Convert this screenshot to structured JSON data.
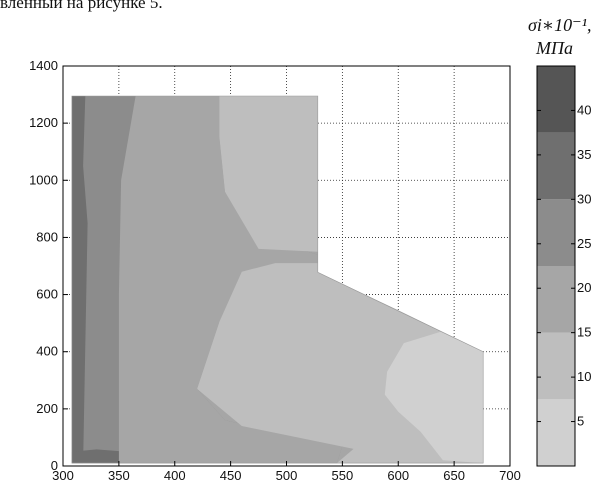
{
  "page": {
    "top_text": "вленный на рисунке 5.",
    "colorbar_title_line1": "σi∗10⁻¹,",
    "colorbar_title_line2": "МПа"
  },
  "chart_data": {
    "type": "heatmap",
    "title": "",
    "xlabel": "",
    "ylabel": "",
    "x_ticks": [
      "300",
      "350",
      "400",
      "450",
      "500",
      "550",
      "600",
      "650",
      "700"
    ],
    "y_ticks": [
      "0",
      "200",
      "400",
      "600",
      "800",
      "1000",
      "1200",
      "1400"
    ],
    "xlim": [
      300,
      700
    ],
    "ylim": [
      0,
      1400
    ],
    "grid": true,
    "domain_outline": [
      [
        308,
        1295
      ],
      [
        528,
        1295
      ],
      [
        528,
        678
      ],
      [
        676,
        400
      ],
      [
        676,
        10
      ],
      [
        308,
        10
      ]
    ],
    "colorbar": {
      "range": [
        0,
        45
      ],
      "levels": [
        {
          "from": 0,
          "to": 7.5,
          "color": "#d0d0d0"
        },
        {
          "from": 7.5,
          "to": 15,
          "color": "#bebebe"
        },
        {
          "from": 15,
          "to": 22.5,
          "color": "#a6a6a6"
        },
        {
          "from": 22.5,
          "to": 30,
          "color": "#8c8c8c"
        },
        {
          "from": 30,
          "to": 37.5,
          "color": "#6f6f6f"
        },
        {
          "from": 37.5,
          "to": 45,
          "color": "#555555"
        }
      ],
      "tick_labels": [
        "5",
        "10",
        "15",
        "20",
        "25",
        "30",
        "35",
        "40"
      ],
      "tick_values": [
        5,
        10,
        15,
        20,
        25,
        30,
        35,
        40
      ]
    },
    "regions": [
      {
        "level": 22.5,
        "color": "#8c8c8c",
        "boundary": [
          [
            308,
            10
          ],
          [
            308,
            1295
          ],
          [
            445,
            1295
          ],
          [
            440,
            1150
          ],
          [
            445,
            960
          ],
          [
            475,
            880
          ],
          [
            510,
            760
          ],
          [
            528,
            740
          ],
          [
            528,
            678
          ],
          [
            520,
            645
          ],
          [
            440,
            505
          ],
          [
            420,
            270
          ],
          [
            445,
            160
          ],
          [
            550,
            70
          ],
          [
            545,
            10
          ]
        ]
      },
      {
        "level": 30,
        "color": "#6f6f6f",
        "boundary": [
          [
            308,
            1295
          ],
          [
            320,
            1295
          ],
          [
            318,
            1050
          ],
          [
            322,
            850
          ],
          [
            318,
            10
          ],
          [
            308,
            10
          ]
        ]
      },
      {
        "level": 30,
        "color": "#6f6f6f",
        "boundary": [
          [
            308,
            50
          ],
          [
            330,
            58
          ],
          [
            350,
            52
          ],
          [
            400,
            28
          ],
          [
            420,
            10
          ],
          [
            308,
            10
          ]
        ]
      },
      {
        "level": 15,
        "color": "#a6a6a6",
        "boundary": [
          [
            350,
            10
          ],
          [
            350,
            600
          ],
          [
            352,
            1000
          ],
          [
            365,
            1295
          ],
          [
            445,
            1295
          ],
          [
            440,
            1150
          ],
          [
            445,
            960
          ],
          [
            475,
            880
          ],
          [
            510,
            760
          ],
          [
            528,
            740
          ],
          [
            528,
            678
          ],
          [
            520,
            645
          ],
          [
            440,
            505
          ],
          [
            420,
            270
          ],
          [
            445,
            160
          ],
          [
            550,
            70
          ],
          [
            545,
            10
          ]
        ]
      },
      {
        "level": 7.5,
        "color": "#bebebe",
        "boundary": [
          [
            440,
            1295
          ],
          [
            528,
            1295
          ],
          [
            528,
            750
          ],
          [
            475,
            760
          ],
          [
            445,
            960
          ],
          [
            440,
            1150
          ]
        ]
      },
      {
        "level": 7.5,
        "color": "#bebebe",
        "boundary": [
          [
            440,
            505
          ],
          [
            460,
            680
          ],
          [
            490,
            710
          ],
          [
            528,
            710
          ],
          [
            528,
            678
          ],
          [
            600,
            545
          ],
          [
            676,
            400
          ],
          [
            676,
            10
          ],
          [
            545,
            10
          ],
          [
            560,
            60
          ],
          [
            460,
            140
          ],
          [
            420,
            270
          ]
        ]
      },
      {
        "level": 0,
        "color": "#d0d0d0",
        "boundary": [
          [
            676,
            400
          ],
          [
            638,
            470
          ],
          [
            605,
            430
          ],
          [
            590,
            330
          ],
          [
            588,
            250
          ],
          [
            600,
            190
          ],
          [
            620,
            120
          ],
          [
            640,
            20
          ],
          [
            676,
            10
          ]
        ]
      }
    ]
  }
}
